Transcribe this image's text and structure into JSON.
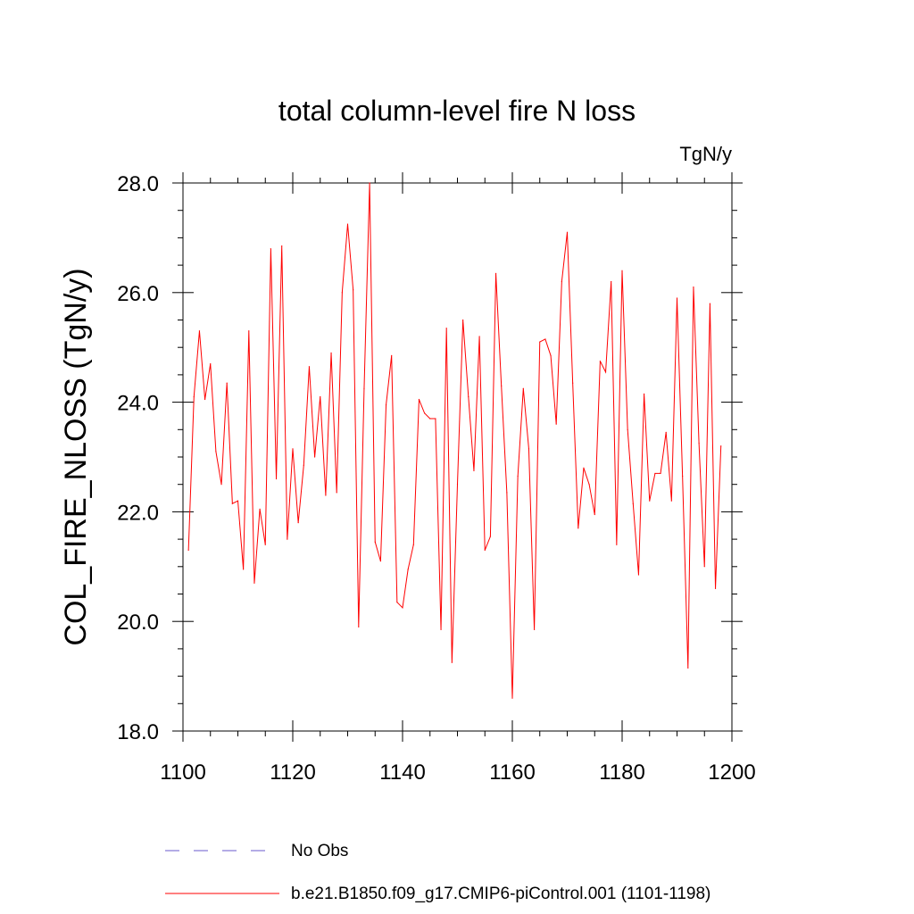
{
  "chart_data": {
    "type": "line",
    "title": "total column-level fire N loss",
    "units_label": "TgN/y",
    "xlabel": "",
    "ylabel": "COL_FIRE_NLOSS  (TgN/y)",
    "xlim": [
      1100,
      1200
    ],
    "ylim": [
      18.0,
      28.0
    ],
    "x_ticks": [
      1100,
      1120,
      1140,
      1160,
      1180,
      1200
    ],
    "x_tick_labels": [
      "1100",
      "1120",
      "1140",
      "1160",
      "1180",
      "1200"
    ],
    "y_ticks": [
      18.0,
      20.0,
      22.0,
      24.0,
      26.0,
      28.0
    ],
    "y_tick_labels": [
      "18.0",
      "20.0",
      "22.0",
      "24.0",
      "26.0",
      "28.0"
    ],
    "grid": false,
    "legend_position": "bottom",
    "legend": [
      {
        "label": "No Obs",
        "style": "dashed",
        "color": "#6a5acd"
      },
      {
        "label": "b.e21.B1850.f09_g17.CMIP6-piControl.001 (1101-1198)",
        "style": "solid",
        "color": "#ff0000"
      }
    ],
    "series": [
      {
        "name": "b.e21.B1850.f09_g17.CMIP6-piControl.001 (1101-1198)",
        "color": "#ff0000",
        "x_start": 1101,
        "values": [
          21.3,
          24.1,
          25.3,
          24.05,
          24.7,
          23.1,
          22.5,
          24.35,
          22.15,
          22.2,
          20.95,
          25.3,
          20.7,
          22.05,
          21.4,
          26.8,
          22.6,
          26.85,
          21.5,
          23.15,
          21.8,
          22.85,
          24.65,
          23.0,
          24.1,
          22.3,
          24.9,
          22.35,
          26.0,
          27.25,
          26.05,
          19.9,
          24.25,
          28.0,
          21.45,
          21.1,
          23.95,
          24.85,
          20.35,
          20.25,
          20.95,
          21.4,
          24.05,
          23.8,
          23.7,
          23.7,
          19.85,
          25.35,
          19.25,
          22.5,
          25.5,
          24.1,
          22.75,
          25.2,
          21.3,
          21.55,
          26.35,
          24.3,
          22.35,
          18.6,
          22.65,
          24.25,
          23.15,
          19.85,
          25.1,
          25.15,
          24.85,
          23.6,
          26.2,
          27.1,
          24.35,
          21.7,
          22.8,
          22.5,
          21.95,
          24.75,
          24.55,
          26.2,
          21.4,
          26.4,
          23.5,
          22.15,
          20.85,
          24.15,
          22.2,
          22.7,
          22.7,
          23.45,
          22.2,
          25.9,
          22.65,
          19.15,
          26.1,
          23.25,
          21.0,
          25.8,
          20.6,
          23.2
        ]
      }
    ]
  },
  "colors": {
    "series_line": "#ff0000",
    "obs_line": "#6a5acd",
    "axes": "#000000"
  }
}
